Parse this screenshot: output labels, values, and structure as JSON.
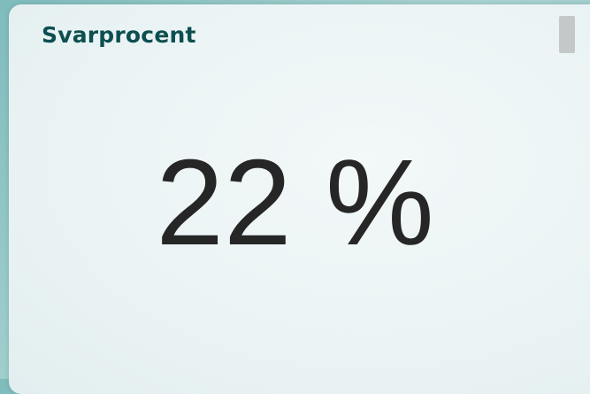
{
  "card": {
    "title": "Svarprocent",
    "value": "22 %"
  }
}
